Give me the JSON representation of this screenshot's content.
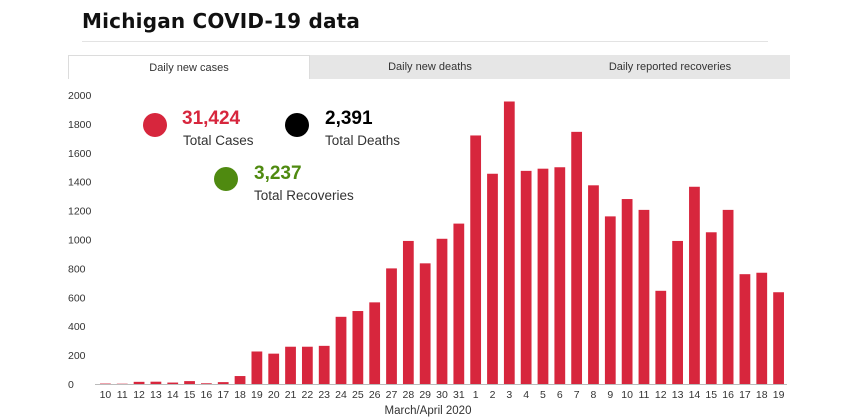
{
  "header": {
    "title": "Michigan COVID-19 data"
  },
  "tabs": [
    {
      "label": "Daily new cases",
      "active": true
    },
    {
      "label": "Daily new deaths",
      "active": false
    },
    {
      "label": "Daily reported recoveries",
      "active": false
    }
  ],
  "summary": {
    "cases": {
      "value": "31,424",
      "label": "Total Cases",
      "color": "#d7263d"
    },
    "deaths": {
      "value": "2,391",
      "label": "Total Deaths",
      "color": "#000000"
    },
    "recoveries": {
      "value": "3,237",
      "label": "Total Recoveries",
      "color": "#4f8a10"
    }
  },
  "chart_data": {
    "type": "bar",
    "title": "",
    "xlabel": "March/April 2020",
    "ylabel": "",
    "ylim": [
      0,
      2000
    ],
    "yticks": [
      0,
      200,
      400,
      600,
      800,
      1000,
      1200,
      1400,
      1600,
      1800,
      2000
    ],
    "grid": false,
    "bar_color": "#d7263d",
    "categories": [
      "10",
      "11",
      "12",
      "13",
      "14",
      "15",
      "16",
      "17",
      "18",
      "19",
      "20",
      "21",
      "22",
      "23",
      "24",
      "25",
      "26",
      "27",
      "28",
      "29",
      "30",
      "31",
      "1",
      "2",
      "3",
      "4",
      "5",
      "6",
      "7",
      "8",
      "9",
      "10",
      "11",
      "12",
      "13",
      "14",
      "15",
      "16",
      "17",
      "18",
      "19"
    ],
    "values": [
      3,
      2,
      15,
      16,
      10,
      20,
      5,
      13,
      55,
      225,
      210,
      258,
      258,
      264,
      465,
      505,
      565,
      800,
      990,
      835,
      1005,
      1110,
      1720,
      1455,
      1955,
      1475,
      1490,
      1500,
      1745,
      1375,
      1160,
      1280,
      1205,
      645,
      990,
      1365,
      1050,
      1205,
      760,
      770,
      635
    ]
  }
}
